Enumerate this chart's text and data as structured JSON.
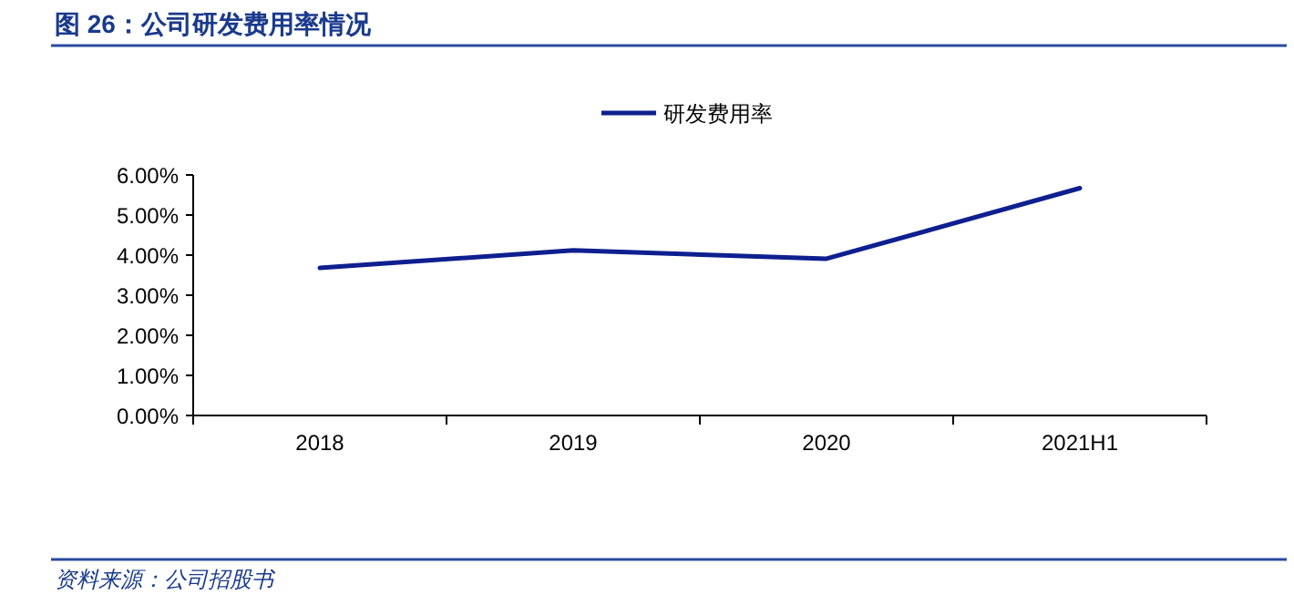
{
  "chart_data": {
    "type": "line",
    "title": "图 26：公司研发费用率情况",
    "categories": [
      "2018",
      "2019",
      "2020",
      "2021H1"
    ],
    "series": [
      {
        "name": "研发费用率",
        "color": "#0e1f8f",
        "values": [
          3.68,
          4.12,
          3.91,
          5.67
        ]
      }
    ],
    "ylim": [
      0,
      6
    ],
    "yticks": [
      {
        "value": 0,
        "label": "0.00%"
      },
      {
        "value": 1,
        "label": "1.00%"
      },
      {
        "value": 2,
        "label": "2.00%"
      },
      {
        "value": 3,
        "label": "3.00%"
      },
      {
        "value": 4,
        "label": "4.00%"
      },
      {
        "value": 5,
        "label": "5.00%"
      },
      {
        "value": 6,
        "label": "6.00%"
      }
    ],
    "grid": false,
    "legend": "top",
    "marker": "none",
    "line_style": "solid",
    "annotations": [
      "资料来源：公司招股书"
    ]
  }
}
